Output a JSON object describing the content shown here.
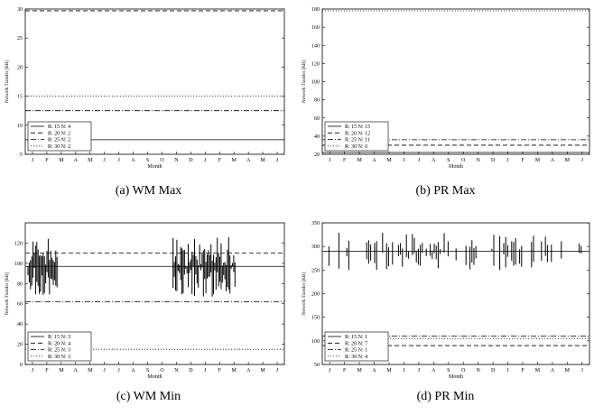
{
  "chart_data": [
    {
      "type": "line",
      "caption": "(a) WM Max",
      "xlabel": "Month",
      "ylabel": "Network Transfer [KB]",
      "ylim": [
        5,
        30
      ],
      "yticks": [
        5,
        10,
        15,
        20,
        25,
        30
      ],
      "months": [
        "J",
        "F",
        "M",
        "A",
        "M",
        "J",
        "J",
        "A",
        "S",
        "O",
        "N",
        "D",
        "J",
        "F",
        "M",
        "A",
        "M",
        "J"
      ],
      "legend_position": "bottom-left",
      "series": [
        {
          "name": "R: 15 N: 4",
          "style": "solid",
          "values": [
            7.5
          ]
        },
        {
          "name": "R: 20 N: 2",
          "style": "dashed",
          "values": [
            29.7
          ]
        },
        {
          "name": "R: 25 N: 2",
          "style": "dashdot",
          "values": [
            12.5
          ]
        },
        {
          "name": "R: 30 N: 2",
          "style": "dotted",
          "values": [
            15
          ]
        }
      ]
    },
    {
      "type": "line",
      "caption": "(b) PR Max",
      "xlabel": "Month",
      "ylabel": "Network Transfer [KB]",
      "ylim": [
        20,
        180
      ],
      "yticks": [
        20,
        40,
        60,
        80,
        100,
        120,
        140,
        160,
        180
      ],
      "months": [
        "J",
        "F",
        "M",
        "A",
        "M",
        "J",
        "J",
        "A",
        "S",
        "O",
        "N",
        "D",
        "J",
        "F",
        "M",
        "A",
        "M",
        "J"
      ],
      "legend_position": "bottom-left",
      "series": [
        {
          "name": "R: 15 N: 15",
          "style": "solid",
          "values": [
            22
          ]
        },
        {
          "name": "R: 20 N: 12",
          "style": "dashed",
          "values": [
            30
          ]
        },
        {
          "name": "R: 25 N: 11",
          "style": "dashdot",
          "values": [
            36
          ]
        },
        {
          "name": "R: 30 N: 0",
          "style": "dotted",
          "values": [
            178
          ]
        }
      ]
    },
    {
      "type": "line",
      "caption": "(c) WM Min",
      "xlabel": "Month",
      "ylabel": "Network Transfer [KB]",
      "ylim": [
        0,
        140
      ],
      "yticks": [
        0,
        20,
        40,
        60,
        80,
        100,
        120
      ],
      "months": [
        "J",
        "F",
        "M",
        "A",
        "M",
        "J",
        "J",
        "A",
        "S",
        "O",
        "N",
        "D",
        "J",
        "F",
        "M",
        "A",
        "M",
        "J"
      ],
      "legend_position": "bottom-left",
      "series": [
        {
          "name": "R: 15 N: 3",
          "style": "solid",
          "values": [
            97
          ]
        },
        {
          "name": "R: 20 N: 4",
          "style": "dashed",
          "values": [
            110
          ]
        },
        {
          "name": "R: 25 N: 3",
          "style": "dashdot",
          "values": [
            62
          ]
        },
        {
          "name": "R: 30 N: 3",
          "style": "dotted",
          "values": [
            15
          ]
        }
      ]
    },
    {
      "type": "line",
      "caption": "(d) PR Min",
      "xlabel": "Month",
      "ylabel": "Network Transfer [KB]",
      "ylim": [
        50,
        350
      ],
      "yticks": [
        50,
        100,
        150,
        200,
        250,
        300,
        350
      ],
      "months": [
        "J",
        "F",
        "M",
        "A",
        "M",
        "J",
        "J",
        "A",
        "S",
        "O",
        "N",
        "D",
        "J",
        "F",
        "M",
        "A",
        "M",
        "J"
      ],
      "legend_position": "bottom-left",
      "series": [
        {
          "name": "R: 15 N: 1",
          "style": "solid",
          "values": [
            290
          ]
        },
        {
          "name": "R: 20 N: 7",
          "style": "dashed",
          "values": [
            90
          ]
        },
        {
          "name": "R: 25 N: 1",
          "style": "dashdot",
          "values": [
            110
          ]
        },
        {
          "name": "R: 30 N: 4",
          "style": "dotted",
          "values": [
            105
          ]
        }
      ]
    }
  ]
}
